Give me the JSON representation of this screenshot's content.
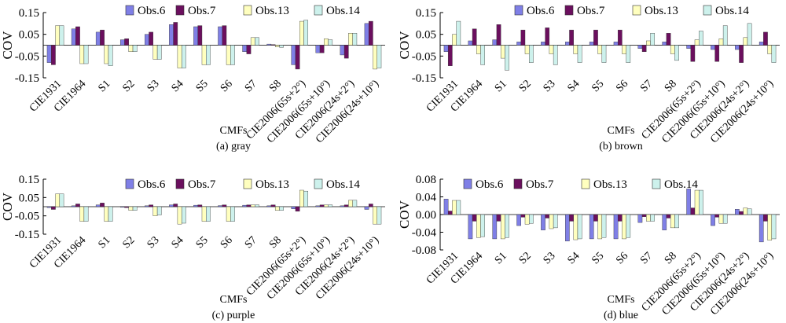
{
  "figure": {
    "legend_labels": [
      "Obs.6",
      "Obs.7",
      "Obs.13",
      "Obs.14"
    ],
    "series_colors": [
      "#7f7fe6",
      "#6b0f5e",
      "#ffffbf",
      "#cdf1ec"
    ],
    "categories": [
      "CIE1931",
      "CIE1964",
      "S1",
      "S2",
      "S3",
      "S4",
      "S5",
      "S6",
      "S7",
      "S8",
      "CIE2006(65s+2°)",
      "CIE2006(65s+10°)",
      "CIE2006(24s+2°)",
      "CIE2006(24s+10°)"
    ]
  },
  "chart_data": [
    {
      "type": "bar",
      "caption": "(a) gray",
      "ylabel": "COV",
      "xlabel": "CMFs",
      "ylim": [
        -0.15,
        0.15
      ],
      "yticks": [
        "0.15",
        "0.05",
        "-0.05",
        "-0.15"
      ],
      "ytick_values": [
        0.15,
        0.05,
        -0.05,
        -0.15
      ],
      "legend": "top-center",
      "categories": [
        "CIE1931",
        "CIE1964",
        "S1",
        "S2",
        "S3",
        "S4",
        "S5",
        "S6",
        "S7",
        "S8",
        "CIE2006(65s+2°)",
        "CIE2006(65s+10°)",
        "CIE2006(24s+2°)",
        "CIE2006(24s+10°)"
      ],
      "series": [
        {
          "name": "Obs.6",
          "values": [
            -0.08,
            0.075,
            0.06,
            0.025,
            0.05,
            0.095,
            0.085,
            0.085,
            -0.03,
            0.005,
            -0.09,
            -0.035,
            -0.045,
            0.1
          ]
        },
        {
          "name": "Obs.7",
          "values": [
            -0.09,
            0.085,
            0.07,
            0.03,
            0.06,
            0.105,
            0.09,
            0.09,
            -0.04,
            0.003,
            -0.11,
            -0.035,
            -0.06,
            0.11
          ]
        },
        {
          "name": "Obs.13",
          "values": [
            0.09,
            -0.085,
            -0.085,
            -0.03,
            -0.065,
            -0.105,
            -0.09,
            -0.09,
            0.035,
            -0.008,
            0.11,
            0.03,
            0.055,
            -0.11
          ]
        },
        {
          "name": "Obs.14",
          "values": [
            0.09,
            -0.085,
            -0.095,
            -0.03,
            -0.065,
            -0.105,
            -0.09,
            -0.09,
            0.035,
            -0.01,
            0.115,
            0.025,
            0.055,
            -0.105
          ]
        }
      ]
    },
    {
      "type": "bar",
      "caption": "(b) brown",
      "ylabel": "COV",
      "xlabel": "CMFs",
      "ylim": [
        -0.15,
        0.15
      ],
      "yticks": [
        "0.15",
        "0.05",
        "-0.05",
        "-0.15"
      ],
      "ytick_values": [
        0.15,
        0.05,
        -0.05,
        -0.15
      ],
      "legend": "top-center",
      "categories": [
        "CIE1931",
        "CIE1964",
        "S1",
        "S2",
        "S3",
        "S4",
        "S5",
        "S6",
        "S7",
        "S8",
        "CIE2006(65s+2°)",
        "CIE2006(65s+10°)",
        "CIE2006(24s+2°)",
        "CIE2006(24s+10°)"
      ],
      "series": [
        {
          "name": "Obs.6",
          "values": [
            -0.03,
            0.02,
            0.025,
            0.015,
            0.015,
            0.015,
            0.015,
            0.015,
            -0.015,
            0.015,
            -0.015,
            -0.02,
            -0.02,
            0.015
          ]
        },
        {
          "name": "Obs.7",
          "values": [
            -0.095,
            0.075,
            0.095,
            0.07,
            0.08,
            0.07,
            0.07,
            0.07,
            -0.03,
            0.055,
            -0.075,
            -0.075,
            -0.08,
            0.06
          ]
        },
        {
          "name": "Obs.13",
          "values": [
            0.05,
            -0.04,
            -0.06,
            -0.04,
            -0.04,
            -0.04,
            -0.04,
            -0.04,
            0.02,
            -0.04,
            0.025,
            0.03,
            0.035,
            -0.04
          ]
        },
        {
          "name": "Obs.14",
          "values": [
            0.11,
            -0.09,
            -0.115,
            -0.08,
            -0.09,
            -0.08,
            -0.08,
            -0.08,
            0.055,
            -0.07,
            0.065,
            0.09,
            0.1,
            -0.08
          ]
        }
      ]
    },
    {
      "type": "bar",
      "caption": "(c) purple",
      "ylabel": "COV",
      "xlabel": "CMFs",
      "ylim": [
        -0.15,
        0.15
      ],
      "yticks": [
        "0.15",
        "0.05",
        "-0.05",
        "-0.15"
      ],
      "ytick_values": [
        0.15,
        0.05,
        -0.05,
        -0.15
      ],
      "legend": "top-center",
      "categories": [
        "CIE1931",
        "CIE1964",
        "S1",
        "S2",
        "S3",
        "S4",
        "S5",
        "S6",
        "S7",
        "S8",
        "CIE2006(65s+2°)",
        "CIE2006(65s+10°)",
        "CIE2006(24s+2°)",
        "CIE2006(24s+10°)"
      ],
      "series": [
        {
          "name": "Obs.6",
          "values": [
            -0.005,
            0.005,
            0.01,
            -0.003,
            0.005,
            0.01,
            0.008,
            0.006,
            0.008,
            0.005,
            -0.012,
            0.005,
            0.005,
            -0.015
          ]
        },
        {
          "name": "Obs.7",
          "values": [
            -0.015,
            0.015,
            0.02,
            -0.005,
            0.01,
            0.015,
            0.01,
            0.01,
            0.01,
            0.01,
            -0.025,
            0.01,
            0.01,
            0.015
          ]
        },
        {
          "name": "Obs.13",
          "values": [
            0.07,
            -0.08,
            -0.08,
            -0.02,
            -0.05,
            -0.095,
            -0.08,
            -0.08,
            0.01,
            -0.02,
            0.09,
            0.01,
            0.035,
            -0.095
          ]
        },
        {
          "name": "Obs.14",
          "values": [
            0.07,
            -0.08,
            -0.08,
            -0.02,
            -0.045,
            -0.09,
            -0.08,
            -0.08,
            0.01,
            -0.02,
            0.085,
            0.01,
            0.035,
            -0.095
          ]
        }
      ]
    },
    {
      "type": "bar",
      "caption": "(d) blue",
      "ylabel": "COV",
      "xlabel": "CMFs",
      "ylim": [
        -0.08,
        0.08
      ],
      "yticks": [
        "0.08",
        "0.04",
        "0.00",
        "-0.04",
        "-0.08"
      ],
      "ytick_values": [
        0.08,
        0.04,
        0.0,
        -0.04,
        -0.08
      ],
      "legend": "top-center",
      "categories": [
        "CIE1931",
        "CIE1964",
        "S1",
        "S2",
        "S3",
        "S4",
        "S5",
        "S6",
        "S7",
        "S8",
        "CIE2006(65s+2°)",
        "CIE2006(65s+10°)",
        "CIE2006(24s+2°)",
        "CIE2006(24s+10°)"
      ],
      "series": [
        {
          "name": "Obs.6",
          "values": [
            0.035,
            -0.055,
            -0.055,
            -0.025,
            -0.035,
            -0.06,
            -0.055,
            -0.055,
            -0.018,
            -0.035,
            0.058,
            -0.025,
            0.012,
            -0.062
          ]
        },
        {
          "name": "Obs.7",
          "values": [
            0.008,
            -0.015,
            -0.015,
            -0.006,
            -0.008,
            -0.015,
            -0.015,
            -0.015,
            -0.005,
            -0.008,
            0.015,
            -0.006,
            0.007,
            -0.015
          ]
        },
        {
          "name": "Obs.13",
          "values": [
            0.032,
            -0.052,
            -0.055,
            -0.022,
            -0.032,
            -0.057,
            -0.055,
            -0.055,
            -0.015,
            -0.03,
            0.055,
            -0.02,
            0.015,
            -0.058
          ]
        },
        {
          "name": "Obs.14",
          "values": [
            0.032,
            -0.05,
            -0.052,
            -0.02,
            -0.03,
            -0.055,
            -0.052,
            -0.052,
            -0.015,
            -0.03,
            0.055,
            -0.02,
            0.013,
            -0.055
          ]
        }
      ]
    }
  ]
}
